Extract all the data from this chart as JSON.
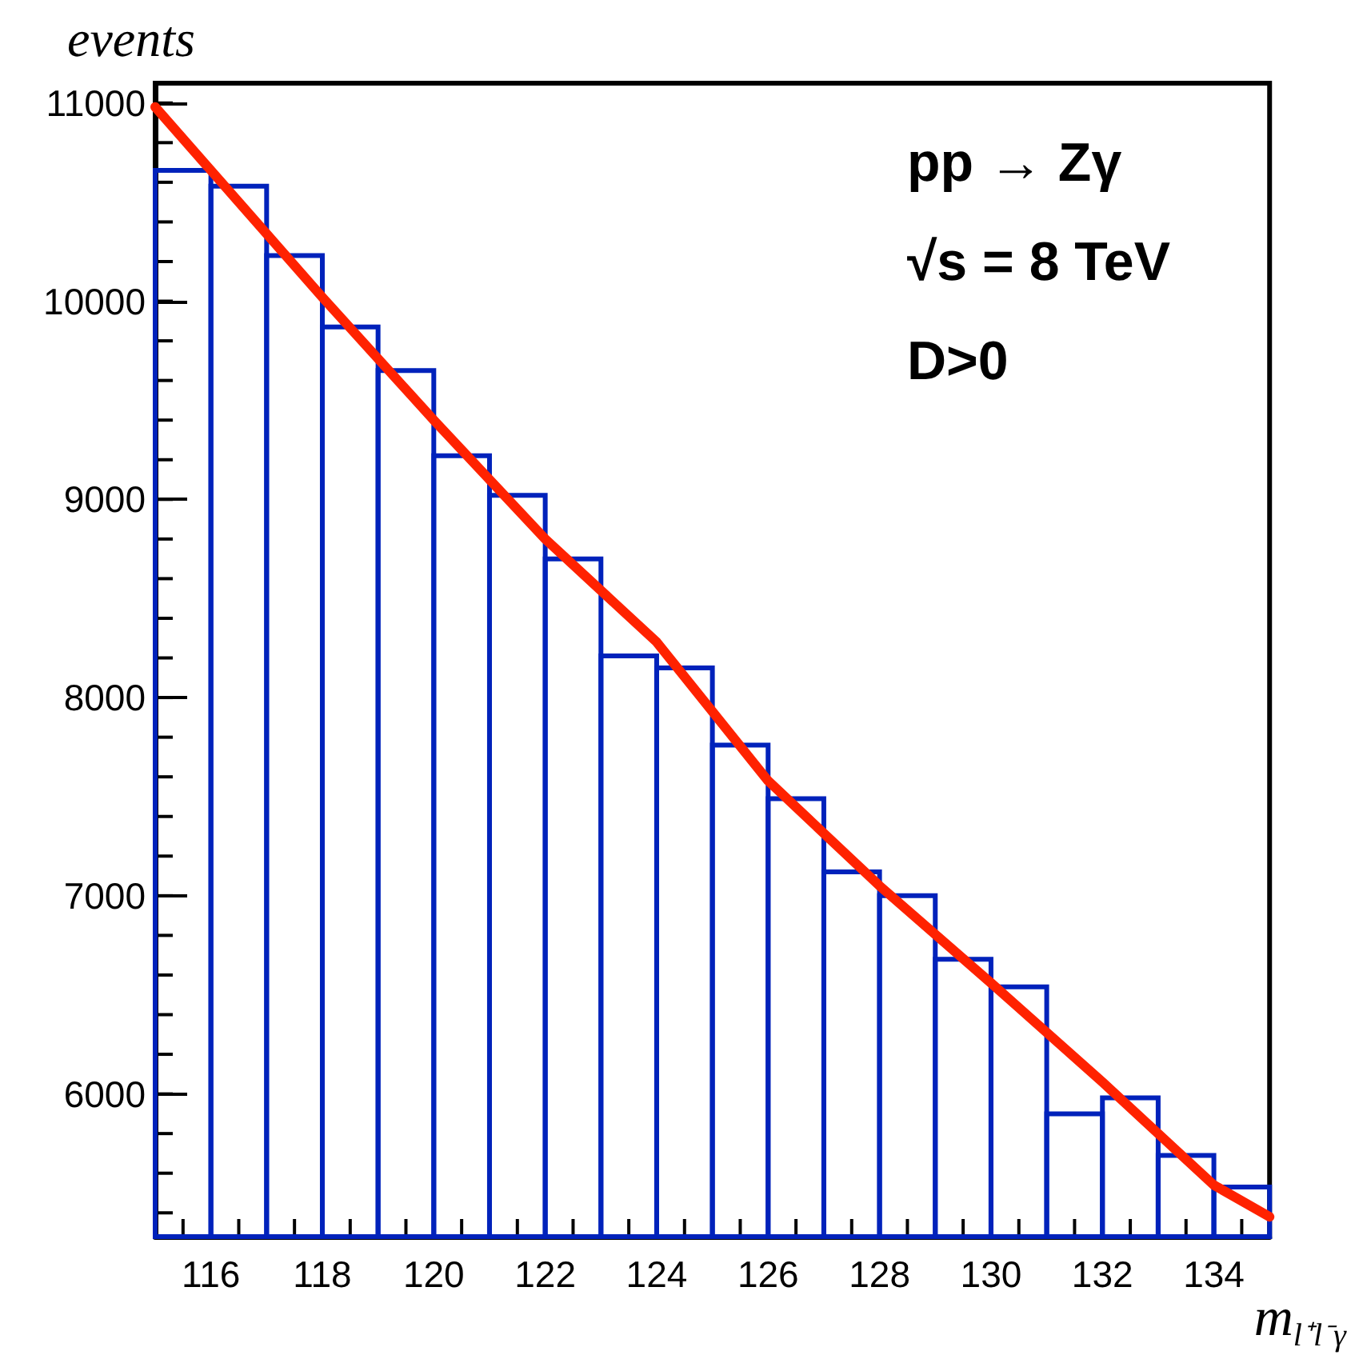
{
  "chart_data": {
    "type": "histogram",
    "ylabel": "events",
    "xlabel": "m$_{l⁺l⁻γ}$",
    "annotations": [
      "pp → Zγ",
      "√s = 8 TeV",
      "D>0"
    ],
    "bins": [
      115,
      116,
      117,
      118,
      119,
      120,
      121,
      122,
      123,
      124,
      125,
      126,
      127,
      128,
      129,
      130,
      131,
      132,
      133,
      134,
      135
    ],
    "values": [
      10660,
      10580,
      10230,
      9870,
      9650,
      9220,
      9020,
      8700,
      8210,
      8150,
      7760,
      7490,
      7120,
      7000,
      6680,
      6540,
      5900,
      5980,
      5690,
      5530
    ],
    "color": "#0022bb",
    "series": [
      {
        "type": "line",
        "color": "#ff2200",
        "x": [
          115,
          118,
          120,
          122,
          124,
          126,
          128,
          130,
          132,
          134,
          135
        ],
        "values": [
          10980,
          10020,
          9400,
          8800,
          8280,
          7580,
          7050,
          6560,
          6060,
          5540,
          5380
        ]
      }
    ],
    "xlim": [
      115,
      135
    ],
    "ylim": [
      5280,
      11100
    ],
    "xticks": [
      116,
      118,
      120,
      122,
      124,
      126,
      128,
      130,
      132,
      134
    ],
    "yticks": [
      6000,
      7000,
      8000,
      9000,
      10000,
      11000
    ],
    "grid": false
  }
}
